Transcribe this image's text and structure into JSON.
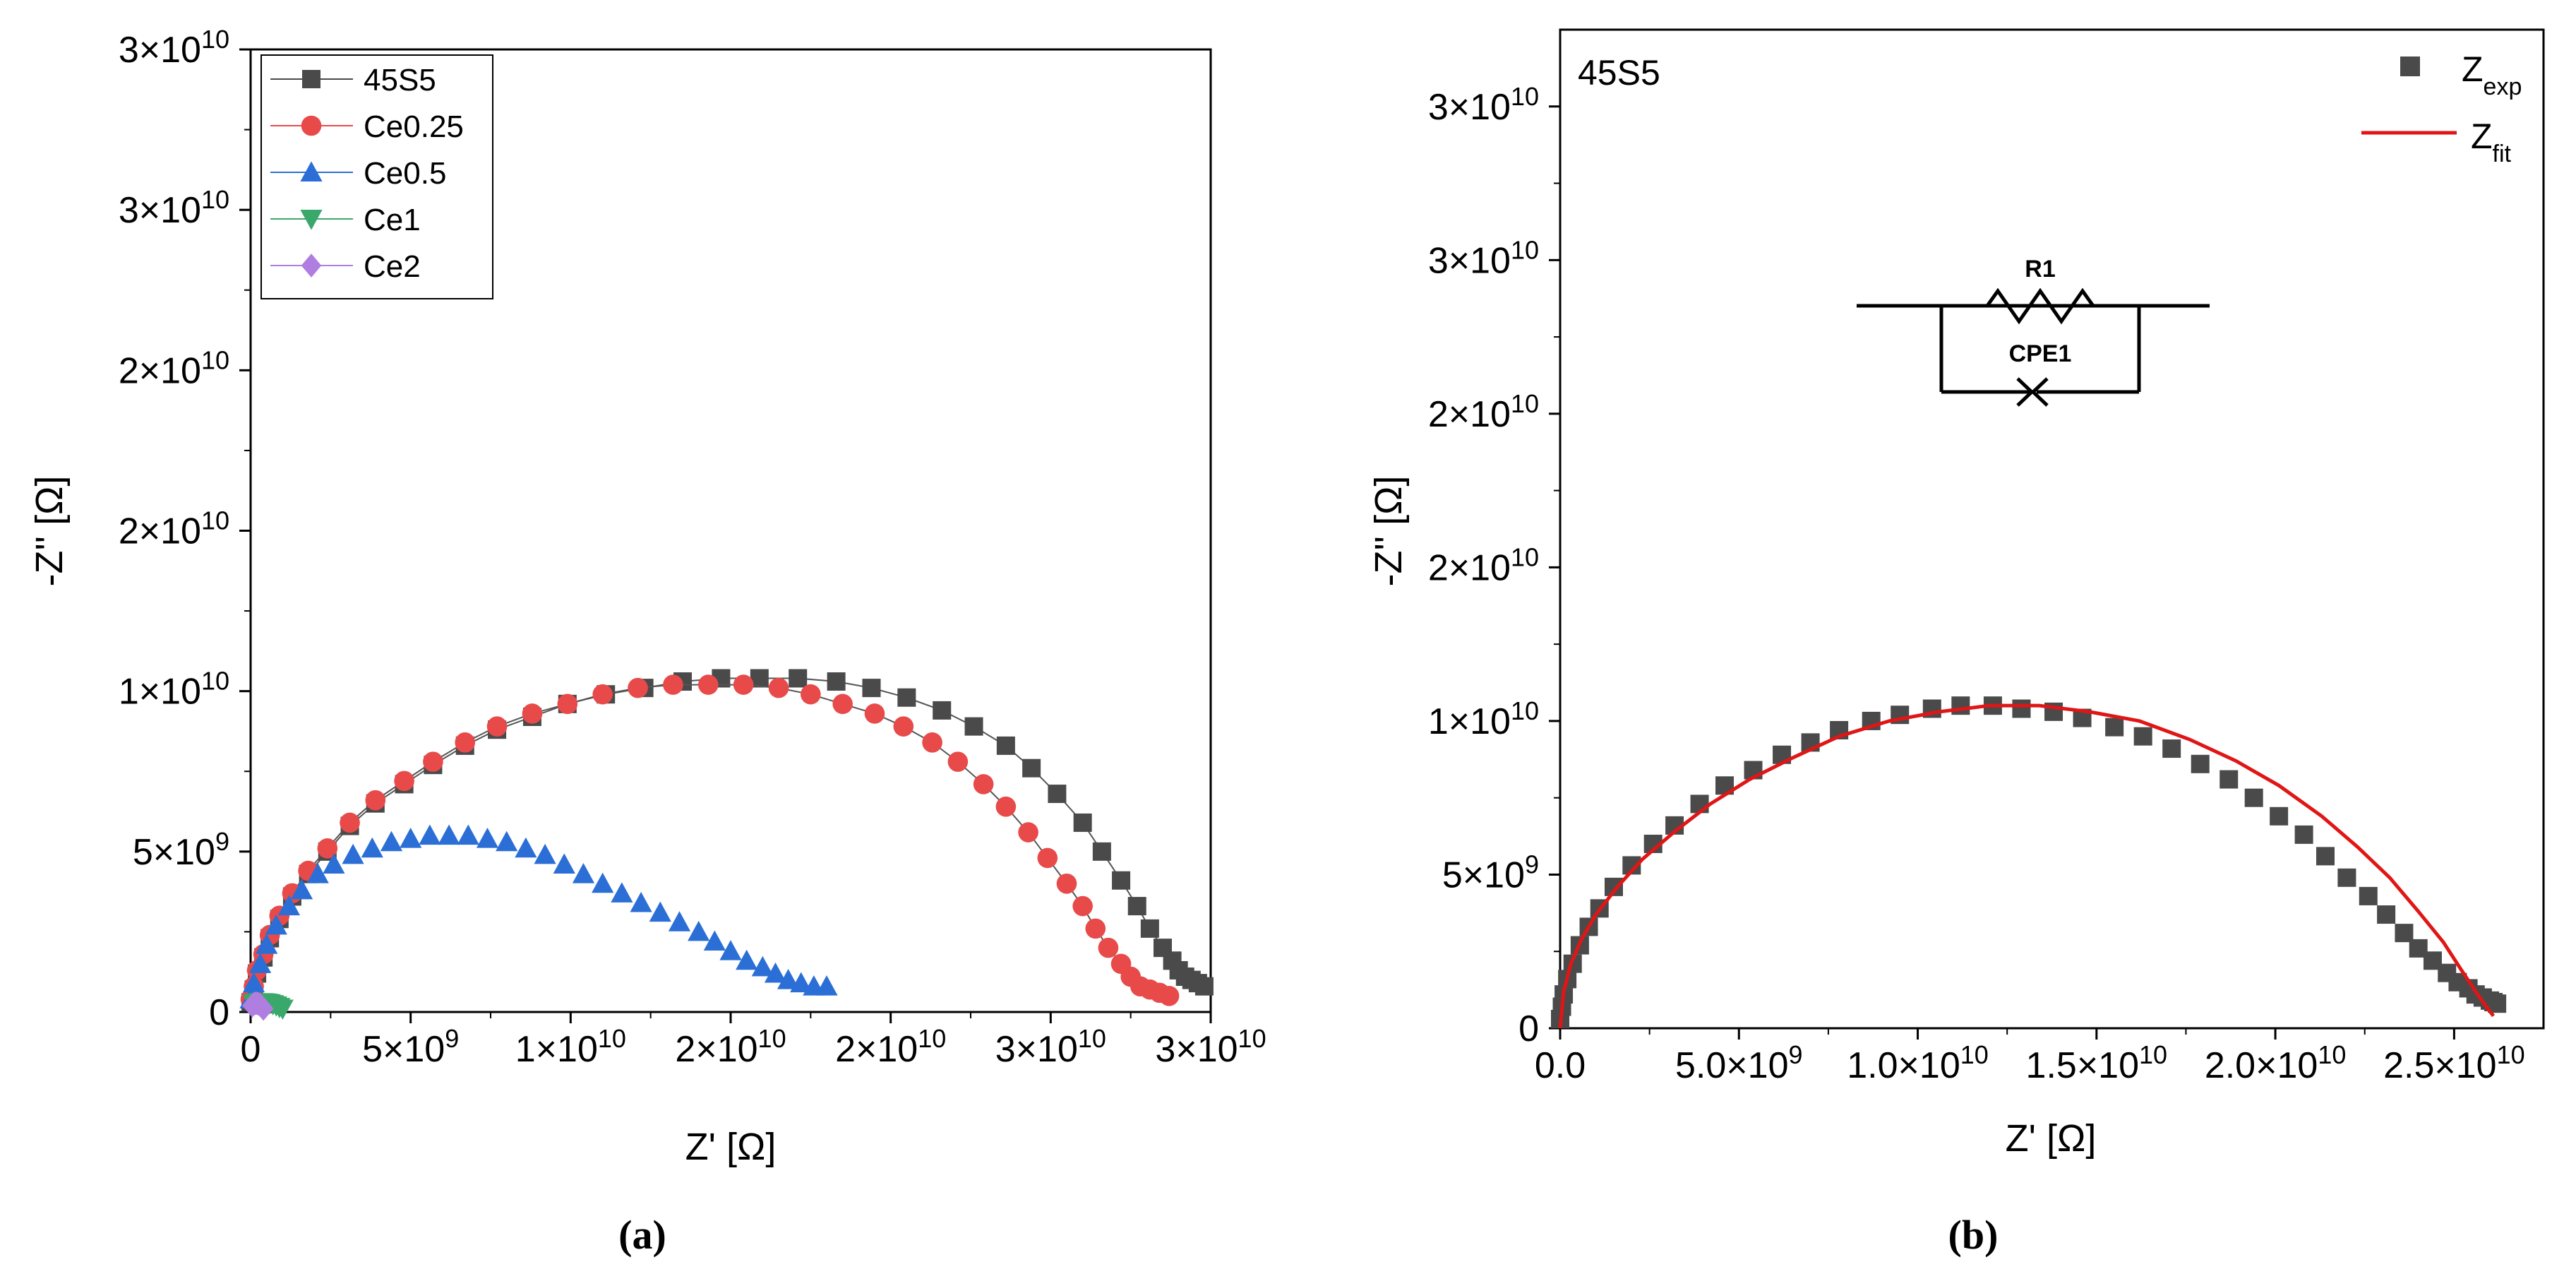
{
  "chart_data": [
    {
      "type": "scatter",
      "panel_label": "(a)",
      "xlabel": "Z' [Ω]",
      "ylabel": "-Z'' [Ω]",
      "xlim": [
        0,
        30000000000
      ],
      "ylim": [
        0,
        30000000000
      ],
      "x_ticks": [
        0,
        5000000000,
        10000000000,
        15000000000,
        20000000000,
        25000000000,
        30000000000
      ],
      "x_tick_labels": [
        "0",
        "5×10^9",
        "1×10^10",
        "2×10^10",
        "2×10^10",
        "3×10^10",
        "3×10^10"
      ],
      "y_ticks": [
        0,
        5000000000,
        10000000000,
        15000000000,
        20000000000,
        25000000000,
        30000000000
      ],
      "y_tick_labels": [
        "0",
        "5×10^9",
        "1×10^10",
        "2×10^10",
        "2×10^10",
        "3×10^10",
        "3×10^10"
      ],
      "legend_position": "top-left",
      "series": [
        {
          "name": "45S5",
          "color": "#4a4a4a",
          "marker": "square",
          "line": true,
          "x": [
            0.0,
            100000000.0,
            200000000.0,
            400000000.0,
            600000000.0,
            900000000.0,
            1300000000.0,
            1800000000.0,
            2400000000.0,
            3100000000.0,
            3900000000.0,
            4800000000.0,
            5700000000.0,
            6700000000.0,
            7700000000.0,
            8800000000.0,
            9900000000.0,
            11100000000.0,
            12300000000.0,
            13500000000.0,
            14700000000.0,
            15900000000.0,
            17100000000.0,
            18300000000.0,
            19400000000.0,
            20500000000.0,
            21600000000.0,
            22600000000.0,
            23600000000.0,
            24400000000.0,
            25200000000.0,
            26000000000.0,
            26600000000.0,
            27200000000.0,
            27700000000.0,
            28100000000.0,
            28500000000.0,
            28800000000.0,
            29000000000.0,
            29200000000.0,
            29400000000.0,
            29600000000.0,
            29800000000.0
          ],
          "y": [
            300000000.0,
            700000000.0,
            1200000000.0,
            1700000000.0,
            2300000000.0,
            2900000000.0,
            3600000000.0,
            4300000000.0,
            5000000000.0,
            5800000000.0,
            6500000000.0,
            7100000000.0,
            7700000000.0,
            8300000000.0,
            8800000000.0,
            9200000000.0,
            9600000000.0,
            9900000000.0,
            10100000000.0,
            10300000000.0,
            10400000000.0,
            10400000000.0,
            10400000000.0,
            10300000000.0,
            10100000000.0,
            9800000000.0,
            9400000000.0,
            8900000000.0,
            8300000000.0,
            7600000000.0,
            6800000000.0,
            5900000000.0,
            5000000000.0,
            4100000000.0,
            3300000000.0,
            2600000000.0,
            2000000000.0,
            1600000000.0,
            1300000000.0,
            1100000000.0,
            1000000000.0,
            900000000.0,
            800000000.0
          ]
        },
        {
          "name": "Ce0.25",
          "color": "#e84a4a",
          "marker": "circle",
          "line": true,
          "x": [
            0.0,
            100000000.0,
            200000000.0,
            400000000.0,
            600000000.0,
            900000000.0,
            1300000000.0,
            1800000000.0,
            2400000000.0,
            3100000000.0,
            3900000000.0,
            4800000000.0,
            5700000000.0,
            6700000000.0,
            7700000000.0,
            8800000000.0,
            9900000000.0,
            11000000000.0,
            12100000000.0,
            13200000000.0,
            14300000000.0,
            15400000000.0,
            16500000000.0,
            17500000000.0,
            18500000000.0,
            19500000000.0,
            20400000000.0,
            21300000000.0,
            22100000000.0,
            22900000000.0,
            23600000000.0,
            24300000000.0,
            24900000000.0,
            25500000000.0,
            26000000000.0,
            26400000000.0,
            26800000000.0,
            27200000000.0,
            27500000000.0,
            27800000000.0,
            28100000000.0,
            28400000000.0,
            28700000000.0
          ],
          "y": [
            400000000.0,
            800000000.0,
            1300000000.0,
            1800000000.0,
            2400000000.0,
            3000000000.0,
            3700000000.0,
            4400000000.0,
            5100000000.0,
            5900000000.0,
            6600000000.0,
            7200000000.0,
            7800000000.0,
            8400000000.0,
            8900000000.0,
            9300000000.0,
            9600000000.0,
            9900000000.0,
            10100000000.0,
            10200000000.0,
            10200000000.0,
            10200000000.0,
            10100000000.0,
            9900000000.0,
            9600000000.0,
            9300000000.0,
            8900000000.0,
            8400000000.0,
            7800000000.0,
            7100000000.0,
            6400000000.0,
            5600000000.0,
            4800000000.0,
            4000000000.0,
            3300000000.0,
            2600000000.0,
            2000000000.0,
            1500000000.0,
            1100000000.0,
            800000000.0,
            700000000.0,
            600000000.0,
            500000000.0
          ]
        },
        {
          "name": "Ce0.5",
          "color": "#2b6fd6",
          "marker": "triangle-up",
          "line": false,
          "x": [
            0.0,
            100000000.0,
            300000000.0,
            500000000.0,
            800000000.0,
            1200000000.0,
            1600000000.0,
            2100000000.0,
            2600000000.0,
            3200000000.0,
            3800000000.0,
            4400000000.0,
            5000000000.0,
            5600000000.0,
            6200000000.0,
            6800000000.0,
            7400000000.0,
            8000000000.0,
            8600000000.0,
            9200000000.0,
            9800000000.0,
            10400000000.0,
            11000000000.0,
            11600000000.0,
            12200000000.0,
            12800000000.0,
            13400000000.0,
            14000000000.0,
            14500000000.0,
            15000000000.0,
            15500000000.0,
            16000000000.0,
            16400000000.0,
            16800000000.0,
            17200000000.0,
            17600000000.0,
            18000000000.0
          ],
          "y": [
            400000000.0,
            900000000.0,
            1500000000.0,
            2100000000.0,
            2700000000.0,
            3300000000.0,
            3800000000.0,
            4300000000.0,
            4600000000.0,
            4900000000.0,
            5100000000.0,
            5300000000.0,
            5400000000.0,
            5500000000.0,
            5500000000.0,
            5500000000.0,
            5400000000.0,
            5300000000.0,
            5100000000.0,
            4900000000.0,
            4600000000.0,
            4300000000.0,
            4000000000.0,
            3700000000.0,
            3400000000.0,
            3100000000.0,
            2800000000.0,
            2500000000.0,
            2200000000.0,
            1900000000.0,
            1600000000.0,
            1400000000.0,
            1200000000.0,
            1000000000.0,
            900000000.0,
            800000000.0,
            800000000.0
          ]
        },
        {
          "name": "Ce1",
          "color": "#3aa86a",
          "marker": "triangle-down",
          "line": false,
          "x": [
            100000000.0,
            200000000.0,
            300000000.0,
            400000000.0,
            500000000.0,
            600000000.0,
            700000000.0,
            800000000.0,
            900000000.0,
            1000000000.0
          ],
          "y": [
            250000000.0,
            280000000.0,
            300000000.0,
            300000000.0,
            290000000.0,
            270000000.0,
            240000000.0,
            200000000.0,
            150000000.0,
            100000000.0
          ]
        },
        {
          "name": "Ce2",
          "color": "#b07ee0",
          "marker": "diamond",
          "line": false,
          "x": [
            50000000.0,
            100000000.0,
            150000000.0,
            200000000.0,
            250000000.0,
            300000000.0,
            350000000.0,
            400000000.0
          ],
          "y": [
            200000000.0,
            250000000.0,
            270000000.0,
            270000000.0,
            250000000.0,
            220000000.0,
            170000000.0,
            100000000.0
          ]
        }
      ]
    },
    {
      "type": "scatter",
      "panel_label": "(b)",
      "corner_label": "45S5",
      "xlabel": "Z' [Ω]",
      "ylabel": "-Z'' [Ω]",
      "xlim": [
        0,
        27500000000
      ],
      "ylim": [
        0,
        32500000000
      ],
      "x_ticks": [
        0,
        5000000000,
        10000000000,
        15000000000,
        20000000000,
        25000000000
      ],
      "x_tick_labels": [
        "0.0",
        "5.0×10^9",
        "1.0×10^10",
        "1.5×10^10",
        "2.0×10^10",
        "2.5×10^10"
      ],
      "y_ticks": [
        0,
        5000000000,
        10000000000,
        15000000000,
        20000000000,
        25000000000,
        30000000000
      ],
      "y_tick_labels": [
        "0",
        "5×10^9",
        "1×10^10",
        "2×10^10",
        "2×10^10",
        "3×10^10",
        "3×10^10"
      ],
      "legend_position": "top-right",
      "circuit": {
        "resistor_label": "R1",
        "cpe_label": "CPE1"
      },
      "series": [
        {
          "name": "Z",
          "subscript": "exp",
          "color": "#4a4a4a",
          "marker": "square",
          "line": false,
          "x": [
            0.0,
            50000000.0,
            100000000.0,
            200000000.0,
            350000000.0,
            550000000.0,
            800000000.0,
            1100000000.0,
            1500000000.0,
            2000000000.0,
            2600000000.0,
            3200000000.0,
            3900000000.0,
            4600000000.0,
            5400000000.0,
            6200000000.0,
            7000000000.0,
            7800000000.0,
            8700000000.0,
            9500000000.0,
            10400000000.0,
            11200000000.0,
            12100000000.0,
            12900000000.0,
            13800000000.0,
            14600000000.0,
            15500000000.0,
            16300000000.0,
            17100000000.0,
            17900000000.0,
            18700000000.0,
            19400000000.0,
            20100000000.0,
            20800000000.0,
            21400000000.0,
            22000000000.0,
            22600000000.0,
            23100000000.0,
            23600000000.0,
            24000000000.0,
            24400000000.0,
            24800000000.0,
            25100000000.0,
            25400000000.0,
            25600000000.0,
            25800000000.0,
            26000000000.0,
            26100000000.0,
            26200000000.0
          ],
          "y": [
            300000000.0,
            700000000.0,
            1100000000.0,
            1600000000.0,
            2100000000.0,
            2700000000.0,
            3300000000.0,
            3900000000.0,
            4600000000.0,
            5300000000.0,
            6000000000.0,
            6600000000.0,
            7300000000.0,
            7900000000.0,
            8400000000.0,
            8900000000.0,
            9300000000.0,
            9700000000.0,
            10000000000.0,
            10200000000.0,
            10400000000.0,
            10500000000.0,
            10500000000.0,
            10400000000.0,
            10300000000.0,
            10100000000.0,
            9800000000.0,
            9500000000.0,
            9100000000.0,
            8600000000.0,
            8100000000.0,
            7500000000.0,
            6900000000.0,
            6300000000.0,
            5600000000.0,
            4900000000.0,
            4300000000.0,
            3700000000.0,
            3100000000.0,
            2600000000.0,
            2200000000.0,
            1800000000.0,
            1500000000.0,
            1300000000.0,
            1100000000.0,
            1000000000.0,
            900000000.0,
            850000000.0,
            800000000.0
          ]
        },
        {
          "name": "Z",
          "subscript": "fit",
          "color": "#e01616",
          "marker": "none",
          "line": true,
          "x": [
            0.0,
            100000000.0,
            300000000.0,
            600000000.0,
            1000000000.0,
            1600000000.0,
            2300000000.0,
            3200000000.0,
            4200000000.0,
            5300000000.0,
            6500000000.0,
            7800000000.0,
            9200000000.0,
            10600000000.0,
            12000000000.0,
            13400000000.0,
            14800000000.0,
            16200000000.0,
            17600000000.0,
            18900000000.0,
            20100000000.0,
            21300000000.0,
            22300000000.0,
            23200000000.0,
            24000000000.0,
            24700000000.0,
            25200000000.0,
            25600000000.0,
            25900000000.0,
            26100000000.0
          ],
          "y": [
            0.0,
            1200000000.0,
            2100000000.0,
            2900000000.0,
            3700000000.0,
            4600000000.0,
            5500000000.0,
            6400000000.0,
            7300000000.0,
            8100000000.0,
            8800000000.0,
            9500000000.0,
            10000000000.0,
            10300000000.0,
            10500000000.0,
            10500000000.0,
            10300000000.0,
            10000000000.0,
            9400000000.0,
            8700000000.0,
            7900000000.0,
            6900000000.0,
            5900000000.0,
            4900000000.0,
            3800000000.0,
            2800000000.0,
            1900000000.0,
            1200000000.0,
            700000000.0,
            400000000.0
          ]
        }
      ]
    }
  ]
}
